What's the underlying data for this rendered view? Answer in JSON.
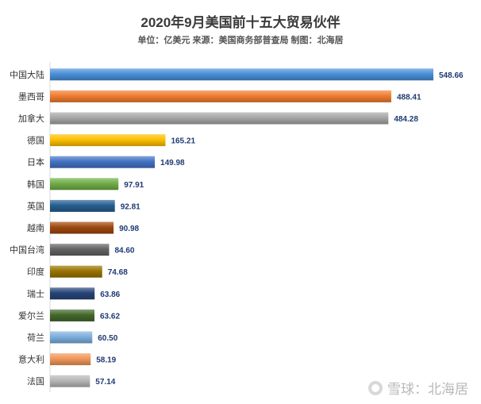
{
  "chart_data": {
    "type": "bar",
    "orientation": "horizontal",
    "title": "2020年9月美国前十五大贸易伙伴",
    "subtitle": "单位：亿美元 来源：美国商务部普查局 制图：北海居",
    "categories": [
      "中国大陆",
      "墨西哥",
      "加拿大",
      "德国",
      "日本",
      "韩国",
      "英国",
      "越南",
      "中国台湾",
      "印度",
      "瑞士",
      "爱尔兰",
      "荷兰",
      "意大利",
      "法国"
    ],
    "values": [
      548.66,
      488.41,
      484.28,
      165.21,
      149.98,
      97.91,
      92.81,
      90.98,
      84.6,
      74.68,
      63.86,
      63.62,
      60.5,
      58.19,
      57.14
    ],
    "value_labels": [
      "548.66",
      "488.41",
      "484.28",
      "165.21",
      "149.98",
      "97.91",
      "92.81",
      "90.98",
      "84.60",
      "74.68",
      "63.86",
      "63.62",
      "60.50",
      "58.19",
      "57.14"
    ],
    "colors": [
      "#4a90d9",
      "#f07c30",
      "#a6a6a6",
      "#ffc000",
      "#4472c4",
      "#70ad47",
      "#255e91",
      "#9e480e",
      "#636363",
      "#997300",
      "#264478",
      "#43682b",
      "#7cafdd",
      "#f1975a",
      "#b7b7b7"
    ],
    "grid": false,
    "legend": "none"
  },
  "watermark": {
    "text": "雪球：北海居",
    "icon": "snowball-logo-icon"
  }
}
